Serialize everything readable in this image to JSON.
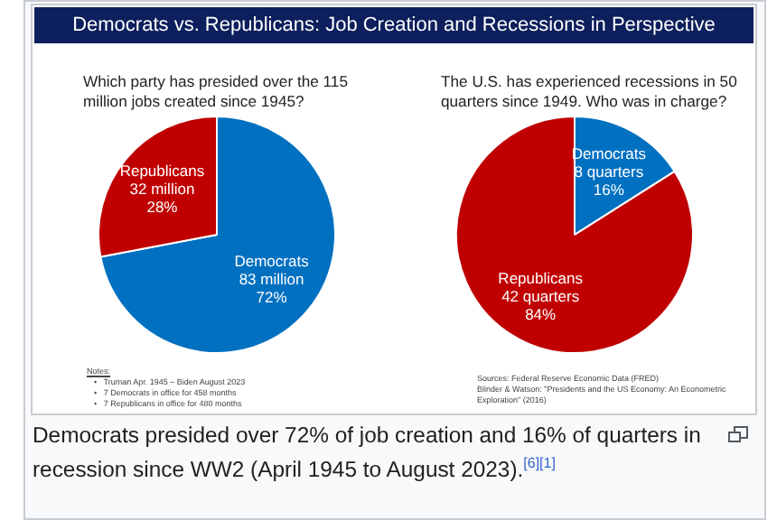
{
  "chart_data": [
    {
      "type": "pie",
      "title": "Democrats vs. Republicans:  Job Creation and Recessions in Perspective",
      "subtitle": "Which party has presided over the 115 million jobs created since 1945?",
      "categories": [
        "Democrats",
        "Republicans"
      ],
      "values": [
        72,
        28
      ],
      "colors": [
        "#0070c0",
        "#c00000"
      ],
      "value_labels": [
        "83 million\n72%",
        "32 million\n28%"
      ],
      "legend": false,
      "annotations": [
        "Notes:",
        "•   Truman Apr. 1945 – Biden August 2023",
        "•   7 Democrats in office for 458 months",
        "•   7 Republicans in office for 480 months"
      ]
    },
    {
      "type": "pie",
      "subtitle": "The U.S. has experienced recessions in 50 quarters since 1949.  Who was in charge?",
      "categories": [
        "Democrats",
        "Republicans"
      ],
      "values": [
        16,
        84
      ],
      "colors": [
        "#0070c0",
        "#c00000"
      ],
      "value_labels": [
        "8 quarters\n16%",
        "42 quarters\n84%"
      ],
      "legend": false,
      "annotations": [
        "Sources:  Federal Reserve Economic Data (FRED)",
        "Blinder & Watson: \"Presidents and the US Economy: An Econometric Exploration\" (2016)"
      ]
    },
    {
      "type": "other",
      "annotations": [
        "Democrats presided over 72% of job creation and 16% of quarters in recession since WW2 (April 1945 to August 2023).$^{[6][1]}$"
      ]
    }
  ]
}
